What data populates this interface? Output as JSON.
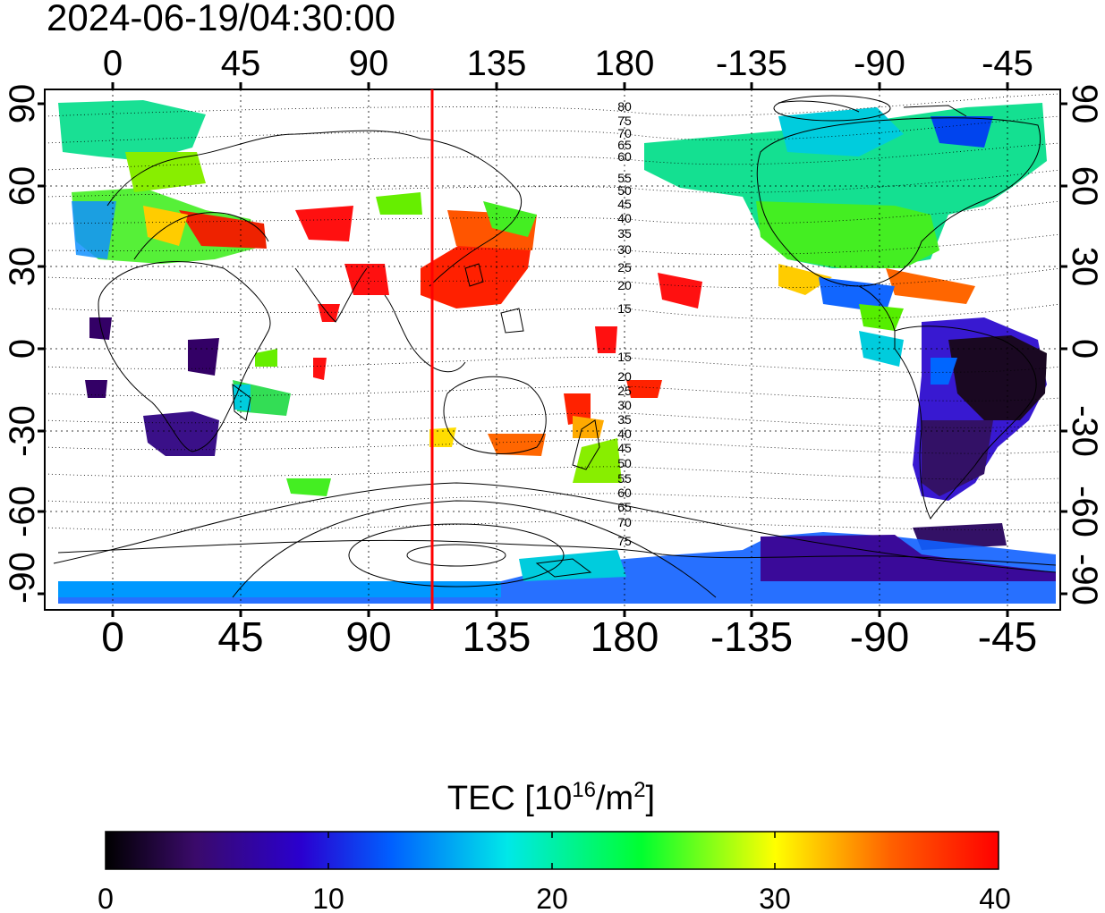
{
  "title": "2024-06-19/04:30:00",
  "map": {
    "lon_ticks_top": [
      "0",
      "45",
      "90",
      "135",
      "180",
      "-135",
      "-90",
      "-45"
    ],
    "lon_ticks_bottom": [
      "0",
      "45",
      "90",
      "135",
      "180",
      "-135",
      "-90",
      "-45"
    ],
    "lat_ticks_left": [
      "90",
      "60",
      "30",
      "0",
      "-30",
      "-60",
      "-90"
    ],
    "lat_ticks_right": [
      "90",
      "60",
      "30",
      "0",
      "-30",
      "-60",
      "-90"
    ],
    "contour_labels_north": [
      "80",
      "75",
      "70",
      "65",
      "60",
      "55",
      "50",
      "45",
      "40",
      "35",
      "30",
      "25",
      "20",
      "15"
    ],
    "contour_labels_south": [
      "15",
      "20",
      "25",
      "30",
      "35",
      "40",
      "45",
      "50",
      "55",
      "60",
      "65",
      "70",
      "75"
    ],
    "red_meridian_lon": 110,
    "grid": true
  },
  "colorbar": {
    "title_prefix": "TEC  [10",
    "title_sup1": "16",
    "title_mid": "/m",
    "title_sup2": "2",
    "title_suffix": "]",
    "tick_labels": [
      "0",
      "10",
      "20",
      "30",
      "40"
    ],
    "min": 0,
    "max": 40,
    "colors": [
      "#000000",
      "#3a0a6a",
      "#2a00d0",
      "#0060ff",
      "#00e8e8",
      "#00ff30",
      "#ffff00",
      "#ff6000",
      "#ff0000"
    ]
  }
}
